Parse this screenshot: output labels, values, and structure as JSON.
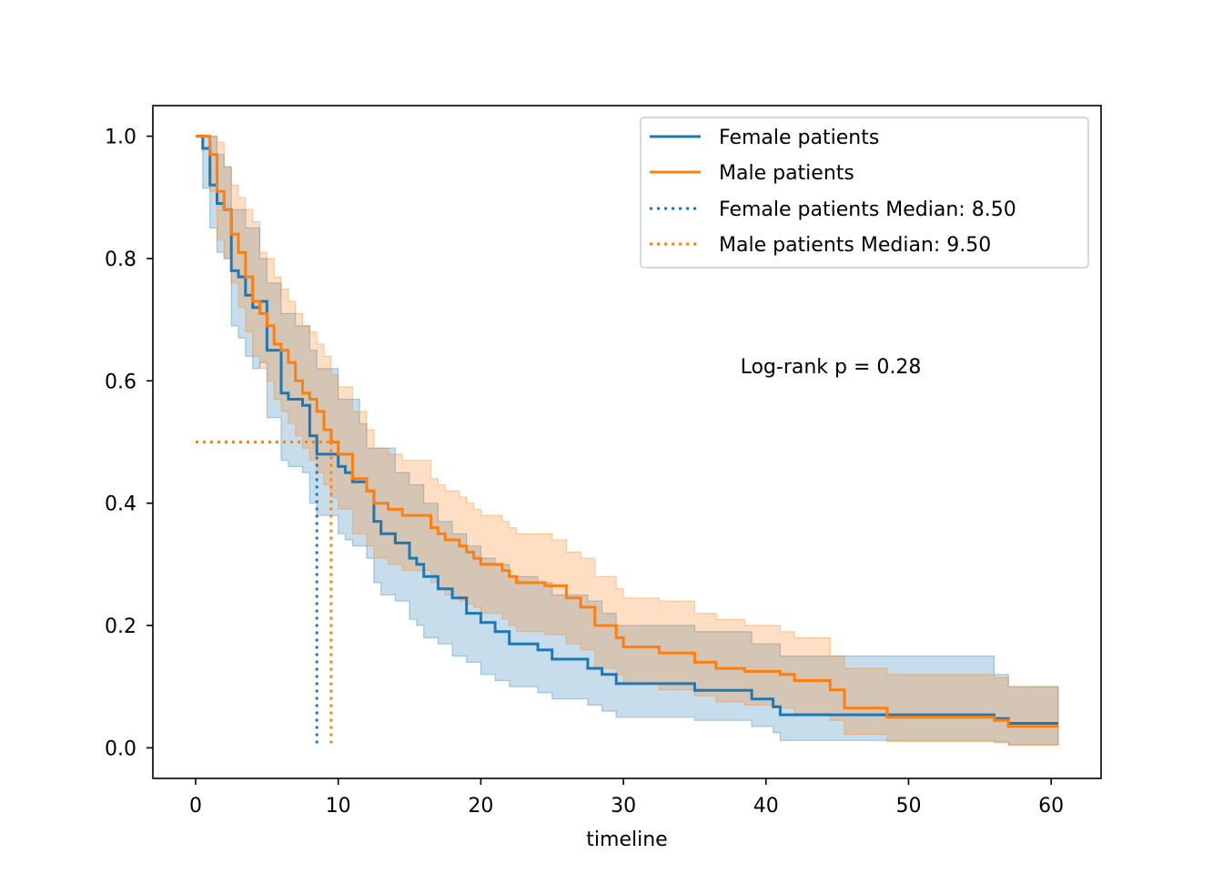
{
  "chart_data": {
    "type": "line",
    "subtype": "kaplan-meier",
    "title": "",
    "xlabel": "timeline",
    "ylabel": "",
    "xlim": [
      -3,
      63.5
    ],
    "ylim": [
      -0.05,
      1.05
    ],
    "xticks": [
      0,
      10,
      20,
      30,
      40,
      50,
      60
    ],
    "yticks": [
      0.0,
      0.2,
      0.4,
      0.6,
      0.8,
      1.0
    ],
    "xtick_labels": [
      "0",
      "10",
      "20",
      "30",
      "40",
      "50",
      "60"
    ],
    "ytick_labels": [
      "0.0",
      "0.2",
      "0.4",
      "0.6",
      "0.8",
      "1.0"
    ],
    "grid": false,
    "legend_position": "top-right",
    "annotation": "Log-rank p = 0.28",
    "series": [
      {
        "name": "Female patients",
        "color": "#1f77b4",
        "median": 8.5,
        "median_label": "Female patients Median: 8.50",
        "steps": [
          [
            0,
            1.0
          ],
          [
            0.5,
            0.98
          ],
          [
            1.0,
            0.92
          ],
          [
            1.5,
            0.89
          ],
          [
            2.0,
            0.88
          ],
          [
            2.5,
            0.78
          ],
          [
            3.0,
            0.77
          ],
          [
            3.5,
            0.74
          ],
          [
            4.0,
            0.72
          ],
          [
            4.5,
            0.73
          ],
          [
            5.0,
            0.65
          ],
          [
            6.0,
            0.58
          ],
          [
            6.5,
            0.57
          ],
          [
            7.5,
            0.56
          ],
          [
            8.0,
            0.51
          ],
          [
            8.5,
            0.48
          ],
          [
            10.0,
            0.46
          ],
          [
            10.5,
            0.45
          ],
          [
            11.0,
            0.435
          ],
          [
            12.0,
            0.42
          ],
          [
            12.5,
            0.37
          ],
          [
            13.0,
            0.35
          ],
          [
            14.0,
            0.335
          ],
          [
            15.0,
            0.31
          ],
          [
            15.5,
            0.3
          ],
          [
            16.0,
            0.28
          ],
          [
            17.0,
            0.26
          ],
          [
            18.0,
            0.245
          ],
          [
            19.0,
            0.22
          ],
          [
            20.0,
            0.205
          ],
          [
            21.0,
            0.19
          ],
          [
            22.0,
            0.17
          ],
          [
            24.0,
            0.16
          ],
          [
            25.0,
            0.145
          ],
          [
            27.5,
            0.13
          ],
          [
            28.5,
            0.12
          ],
          [
            29.5,
            0.105
          ],
          [
            35.0,
            0.094
          ],
          [
            39.0,
            0.08
          ],
          [
            40.5,
            0.067
          ],
          [
            41.0,
            0.054
          ],
          [
            56.0,
            0.048
          ],
          [
            57.0,
            0.04
          ],
          [
            60.5,
            0.04
          ]
        ],
        "ci_upper": [
          [
            0,
            1.0
          ],
          [
            1.0,
            1.0
          ],
          [
            1.5,
            0.97
          ],
          [
            2.0,
            0.95
          ],
          [
            2.5,
            0.88
          ],
          [
            3.5,
            0.85
          ],
          [
            4.5,
            0.8
          ],
          [
            5.0,
            0.76
          ],
          [
            6.0,
            0.71
          ],
          [
            7.0,
            0.69
          ],
          [
            8.0,
            0.65
          ],
          [
            8.5,
            0.62
          ],
          [
            10.0,
            0.57
          ],
          [
            11.5,
            0.53
          ],
          [
            12.0,
            0.49
          ],
          [
            14.0,
            0.45
          ],
          [
            15.0,
            0.43
          ],
          [
            16.0,
            0.4
          ],
          [
            17.0,
            0.37
          ],
          [
            18.0,
            0.35
          ],
          [
            19.0,
            0.33
          ],
          [
            20.0,
            0.31
          ],
          [
            21.0,
            0.3
          ],
          [
            22.0,
            0.28
          ],
          [
            24.0,
            0.27
          ],
          [
            25.0,
            0.25
          ],
          [
            27.5,
            0.24
          ],
          [
            28.5,
            0.22
          ],
          [
            29.5,
            0.2
          ],
          [
            35.0,
            0.19
          ],
          [
            39.0,
            0.17
          ],
          [
            41.0,
            0.15
          ],
          [
            56.0,
            0.12
          ],
          [
            57.0,
            0.1
          ],
          [
            60.5,
            0.1
          ]
        ],
        "ci_lower": [
          [
            0,
            1.0
          ],
          [
            0.5,
            0.915
          ],
          [
            1.0,
            0.85
          ],
          [
            1.5,
            0.81
          ],
          [
            2.0,
            0.8
          ],
          [
            2.5,
            0.69
          ],
          [
            3.0,
            0.67
          ],
          [
            3.5,
            0.64
          ],
          [
            4.0,
            0.62
          ],
          [
            4.5,
            0.63
          ],
          [
            5.0,
            0.54
          ],
          [
            6.0,
            0.47
          ],
          [
            6.5,
            0.46
          ],
          [
            7.5,
            0.45
          ],
          [
            8.0,
            0.4
          ],
          [
            8.5,
            0.38
          ],
          [
            10.0,
            0.35
          ],
          [
            10.5,
            0.34
          ],
          [
            11.0,
            0.33
          ],
          [
            12.0,
            0.31
          ],
          [
            12.5,
            0.27
          ],
          [
            13.0,
            0.25
          ],
          [
            14.0,
            0.24
          ],
          [
            15.0,
            0.21
          ],
          [
            15.5,
            0.2
          ],
          [
            16.0,
            0.18
          ],
          [
            17.0,
            0.17
          ],
          [
            18.0,
            0.15
          ],
          [
            19.0,
            0.14
          ],
          [
            20.0,
            0.12
          ],
          [
            21.0,
            0.11
          ],
          [
            22.0,
            0.1
          ],
          [
            24.0,
            0.09
          ],
          [
            25.0,
            0.08
          ],
          [
            27.5,
            0.07
          ],
          [
            28.5,
            0.06
          ],
          [
            29.5,
            0.05
          ],
          [
            35.0,
            0.045
          ],
          [
            39.0,
            0.035
          ],
          [
            40.5,
            0.025
          ],
          [
            41.0,
            0.012
          ],
          [
            56.0,
            0.01
          ],
          [
            57.0,
            0.005
          ],
          [
            60.5,
            0.005
          ]
        ]
      },
      {
        "name": "Male patients",
        "color": "#ff7f0e",
        "median": 9.5,
        "median_label": "Male patients Median: 9.50",
        "steps": [
          [
            0,
            1.0
          ],
          [
            1.0,
            0.97
          ],
          [
            1.5,
            0.91
          ],
          [
            2.0,
            0.88
          ],
          [
            2.5,
            0.84
          ],
          [
            3.0,
            0.81
          ],
          [
            3.5,
            0.77
          ],
          [
            4.0,
            0.73
          ],
          [
            4.5,
            0.71
          ],
          [
            5.0,
            0.69
          ],
          [
            5.5,
            0.66
          ],
          [
            6.0,
            0.65
          ],
          [
            6.5,
            0.63
          ],
          [
            7.0,
            0.6
          ],
          [
            7.5,
            0.58
          ],
          [
            8.0,
            0.57
          ],
          [
            8.5,
            0.55
          ],
          [
            9.0,
            0.52
          ],
          [
            9.5,
            0.5
          ],
          [
            10.0,
            0.48
          ],
          [
            11.0,
            0.44
          ],
          [
            12.0,
            0.42
          ],
          [
            12.5,
            0.4
          ],
          [
            13.5,
            0.39
          ],
          [
            14.5,
            0.38
          ],
          [
            16.5,
            0.36
          ],
          [
            17.0,
            0.35
          ],
          [
            17.5,
            0.34
          ],
          [
            18.5,
            0.33
          ],
          [
            19.0,
            0.32
          ],
          [
            19.5,
            0.31
          ],
          [
            20.0,
            0.3
          ],
          [
            21.5,
            0.29
          ],
          [
            22.0,
            0.28
          ],
          [
            22.5,
            0.27
          ],
          [
            24.5,
            0.265
          ],
          [
            26.0,
            0.245
          ],
          [
            27.0,
            0.23
          ],
          [
            28.0,
            0.2
          ],
          [
            29.5,
            0.18
          ],
          [
            30.0,
            0.165
          ],
          [
            32.5,
            0.155
          ],
          [
            35.0,
            0.14
          ],
          [
            36.5,
            0.13
          ],
          [
            38.5,
            0.125
          ],
          [
            41.0,
            0.12
          ],
          [
            42.0,
            0.11
          ],
          [
            44.5,
            0.095
          ],
          [
            45.5,
            0.065
          ],
          [
            48.5,
            0.05
          ],
          [
            56.0,
            0.045
          ],
          [
            57.0,
            0.035
          ],
          [
            60.5,
            0.035
          ]
        ],
        "ci_upper": [
          [
            0,
            1.0
          ],
          [
            1.0,
            1.0
          ],
          [
            1.5,
            0.99
          ],
          [
            2.0,
            0.95
          ],
          [
            2.5,
            0.92
          ],
          [
            3.0,
            0.9
          ],
          [
            3.5,
            0.88
          ],
          [
            4.0,
            0.86
          ],
          [
            4.5,
            0.81
          ],
          [
            5.0,
            0.8
          ],
          [
            5.5,
            0.77
          ],
          [
            6.0,
            0.75
          ],
          [
            6.5,
            0.73
          ],
          [
            7.0,
            0.71
          ],
          [
            7.5,
            0.69
          ],
          [
            8.0,
            0.68
          ],
          [
            8.5,
            0.66
          ],
          [
            9.0,
            0.64
          ],
          [
            9.5,
            0.61
          ],
          [
            10.0,
            0.59
          ],
          [
            11.0,
            0.55
          ],
          [
            12.0,
            0.52
          ],
          [
            12.5,
            0.49
          ],
          [
            13.5,
            0.48
          ],
          [
            14.5,
            0.47
          ],
          [
            16.5,
            0.44
          ],
          [
            17.0,
            0.43
          ],
          [
            17.5,
            0.42
          ],
          [
            18.5,
            0.41
          ],
          [
            19.0,
            0.4
          ],
          [
            19.5,
            0.39
          ],
          [
            20.0,
            0.38
          ],
          [
            21.5,
            0.37
          ],
          [
            22.0,
            0.36
          ],
          [
            22.5,
            0.35
          ],
          [
            25.0,
            0.34
          ],
          [
            26.0,
            0.32
          ],
          [
            27.0,
            0.31
          ],
          [
            28.0,
            0.28
          ],
          [
            29.5,
            0.26
          ],
          [
            30.0,
            0.245
          ],
          [
            32.5,
            0.24
          ],
          [
            35.0,
            0.22
          ],
          [
            36.5,
            0.21
          ],
          [
            38.5,
            0.2
          ],
          [
            41.0,
            0.19
          ],
          [
            42.0,
            0.18
          ],
          [
            44.5,
            0.15
          ],
          [
            45.5,
            0.13
          ],
          [
            48.5,
            0.12
          ],
          [
            56.0,
            0.115
          ],
          [
            57.0,
            0.1
          ],
          [
            60.5,
            0.1
          ]
        ],
        "ci_lower": [
          [
            0,
            1.0
          ],
          [
            1.0,
            0.91
          ],
          [
            1.5,
            0.83
          ],
          [
            2.0,
            0.8
          ],
          [
            2.5,
            0.76
          ],
          [
            3.0,
            0.72
          ],
          [
            3.5,
            0.68
          ],
          [
            4.0,
            0.64
          ],
          [
            4.5,
            0.62
          ],
          [
            5.0,
            0.6
          ],
          [
            5.5,
            0.57
          ],
          [
            6.0,
            0.55
          ],
          [
            6.5,
            0.53
          ],
          [
            7.0,
            0.51
          ],
          [
            7.5,
            0.49
          ],
          [
            8.0,
            0.47
          ],
          [
            8.5,
            0.45
          ],
          [
            9.0,
            0.43
          ],
          [
            9.5,
            0.41
          ],
          [
            10.0,
            0.39
          ],
          [
            11.0,
            0.35
          ],
          [
            12.0,
            0.33
          ],
          [
            12.5,
            0.31
          ],
          [
            13.5,
            0.3
          ],
          [
            14.5,
            0.29
          ],
          [
            16.5,
            0.27
          ],
          [
            17.0,
            0.26
          ],
          [
            17.5,
            0.25
          ],
          [
            18.5,
            0.24
          ],
          [
            19.0,
            0.235
          ],
          [
            19.5,
            0.23
          ],
          [
            20.0,
            0.22
          ],
          [
            21.5,
            0.21
          ],
          [
            22.0,
            0.2
          ],
          [
            22.5,
            0.19
          ],
          [
            24.5,
            0.185
          ],
          [
            26.0,
            0.17
          ],
          [
            27.0,
            0.16
          ],
          [
            28.0,
            0.13
          ],
          [
            29.5,
            0.12
          ],
          [
            30.0,
            0.105
          ],
          [
            32.5,
            0.095
          ],
          [
            35.0,
            0.085
          ],
          [
            36.5,
            0.075
          ],
          [
            38.5,
            0.07
          ],
          [
            41.0,
            0.065
          ],
          [
            42.0,
            0.055
          ],
          [
            44.5,
            0.045
          ],
          [
            45.5,
            0.022
          ],
          [
            48.5,
            0.01
          ],
          [
            56.0,
            0.008
          ],
          [
            57.0,
            0.004
          ],
          [
            60.5,
            0.004
          ]
        ]
      }
    ]
  }
}
